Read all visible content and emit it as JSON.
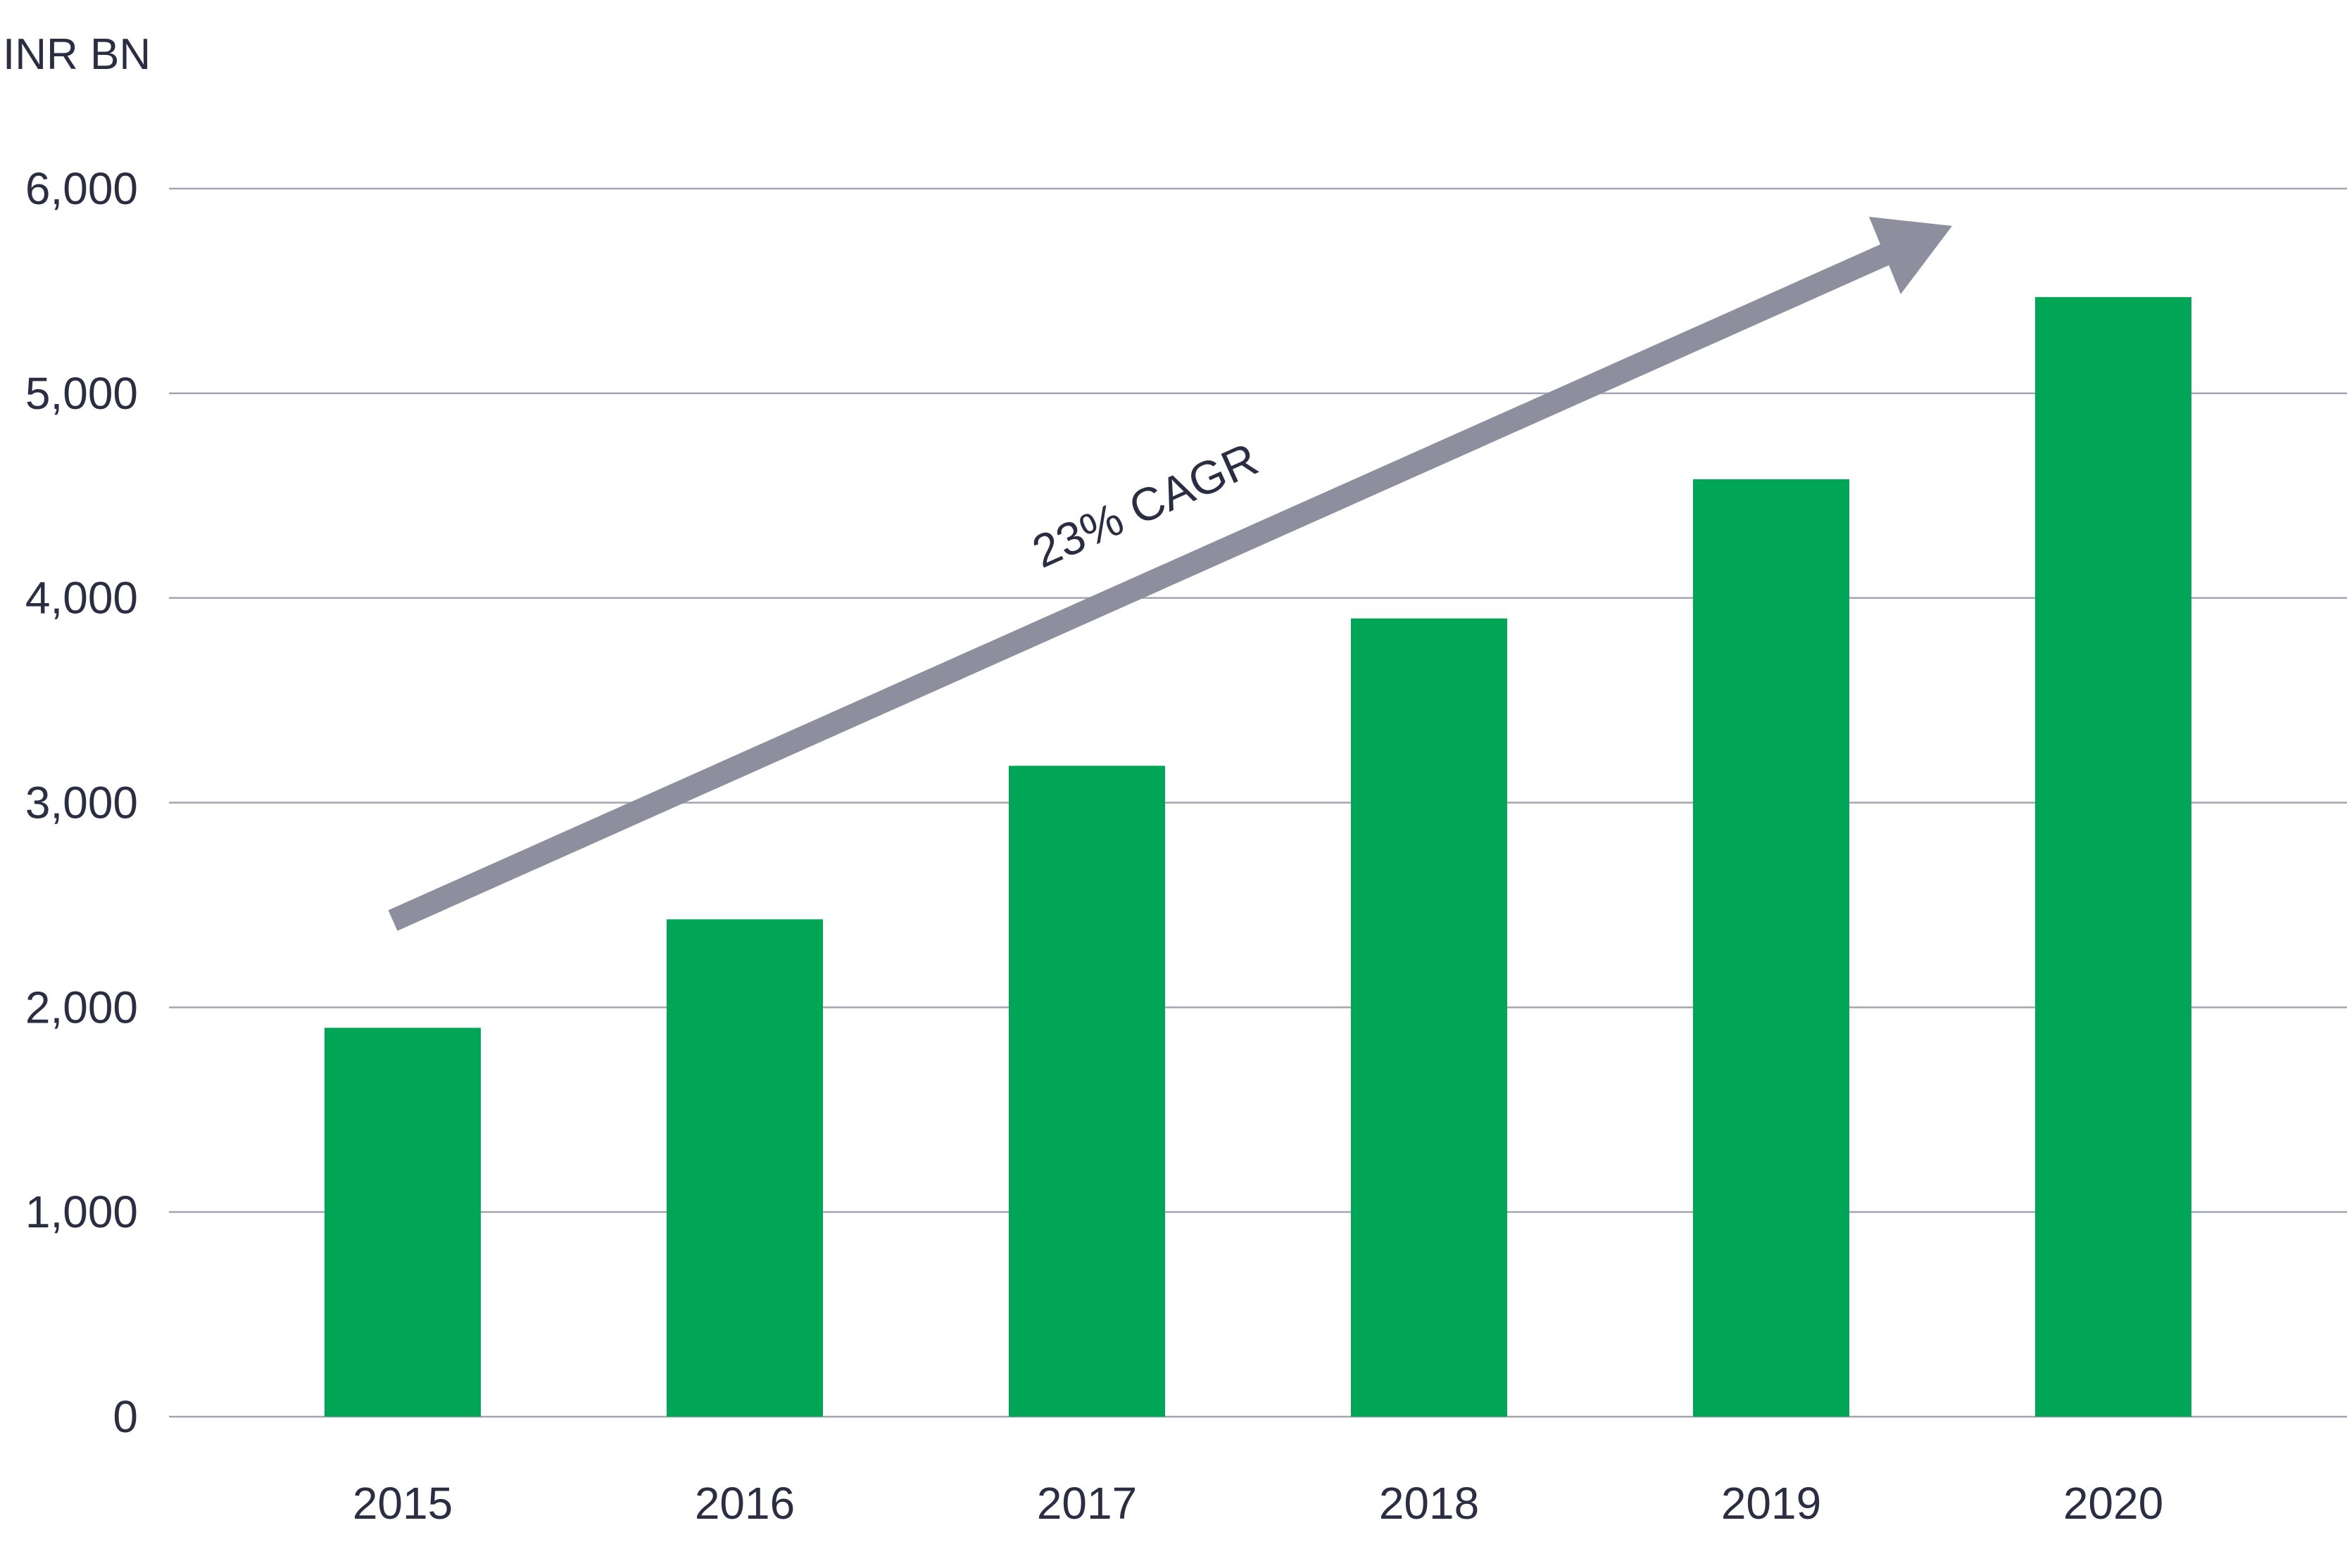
{
  "chart_data": {
    "type": "bar",
    "ylabel": "INR BN",
    "xlabel": "",
    "title": "",
    "categories": [
      "2015",
      "2016",
      "2017",
      "2018",
      "2019",
      "2020"
    ],
    "values": [
      1900,
      2430,
      3180,
      3900,
      4580,
      5470
    ],
    "ylim": [
      0,
      6000
    ],
    "yticks": [
      0,
      1000,
      2000,
      3000,
      4000,
      5000,
      6000
    ],
    "ytick_labels": [
      "0",
      "1,000",
      "2,000",
      "3,000",
      "4,000",
      "5,000",
      "6,000"
    ],
    "grid": true,
    "legend": "none",
    "bar_color": "#00a556",
    "grid_color": "#a2a4b2",
    "text_color": "#2b2d42",
    "annotation": {
      "text": "23% CAGR",
      "type": "arrow",
      "arrow_color": "#8e8f9e"
    }
  }
}
